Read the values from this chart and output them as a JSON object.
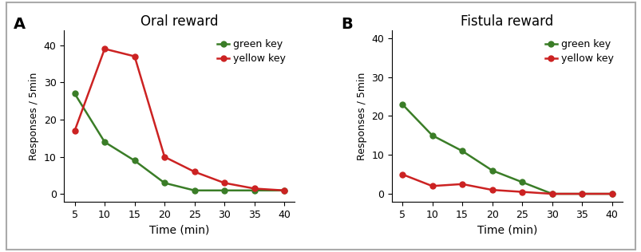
{
  "time": [
    5,
    10,
    15,
    20,
    25,
    30,
    35,
    40
  ],
  "panel_A": {
    "title": "Oral reward",
    "label": "A",
    "green_key": [
      27,
      14,
      9,
      3,
      1,
      1,
      1,
      1
    ],
    "yellow_key": [
      17,
      39,
      37,
      10,
      6,
      3,
      1.5,
      1
    ]
  },
  "panel_B": {
    "title": "Fistula reward",
    "label": "B",
    "green_key": [
      23,
      15,
      11,
      6,
      3,
      0,
      0,
      0
    ],
    "yellow_key": [
      5,
      2,
      2.5,
      1,
      0.5,
      0,
      0,
      0
    ]
  },
  "green_color": "#3a7d27",
  "red_color": "#cc2222",
  "ylabel": "Responses / 5min",
  "xlabel": "Time (min)",
  "ylim_A": [
    -2,
    44
  ],
  "ylim_B": [
    -2,
    42
  ],
  "yticks_A": [
    0,
    10,
    20,
    30,
    40
  ],
  "yticks_B": [
    0,
    10,
    20,
    30,
    40
  ],
  "legend_green": "green key",
  "legend_yellow": "yellow key",
  "plot_bg": "#ffffff",
  "figure_bg": "#ffffff",
  "border_color": "#aaaaaa"
}
